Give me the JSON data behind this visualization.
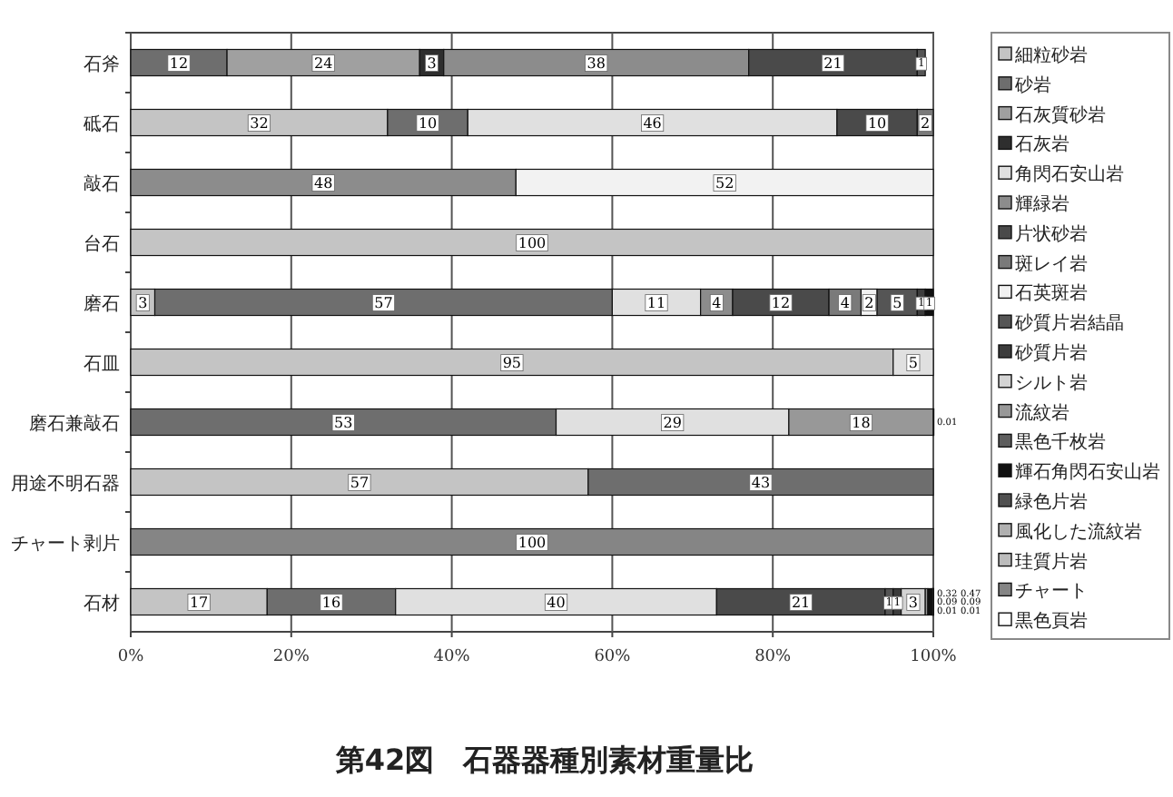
{
  "chart_data": {
    "type": "bar",
    "orientation": "horizontal",
    "stacked": true,
    "title": "第42図　石器器種別素材重量比",
    "categories": [
      "石斧",
      "砥石",
      "敲石",
      "台石",
      "磨石",
      "石皿",
      "磨石兼敲石",
      "用途不明石器",
      "チャート剥片",
      "石材"
    ],
    "xlim": [
      0,
      100
    ],
    "xticks": [
      {
        "value": 0,
        "label": "0%"
      },
      {
        "value": 20,
        "label": "20%"
      },
      {
        "value": 40,
        "label": "40%"
      },
      {
        "value": 60,
        "label": "60%"
      },
      {
        "value": 80,
        "label": "80%"
      },
      {
        "value": 100,
        "label": "100%"
      }
    ],
    "grid": "x",
    "legend": "right",
    "data_labels": true,
    "series": [
      {
        "name": "細粒砂岩",
        "color": "#c4c4c4",
        "values": [
          null,
          32,
          null,
          100,
          3,
          95,
          null,
          57,
          null,
          17
        ]
      },
      {
        "name": "砂岩",
        "color": "#6e6e6e",
        "values": [
          12,
          10,
          null,
          null,
          57,
          null,
          53,
          43,
          null,
          16
        ]
      },
      {
        "name": "石灰質砂岩",
        "color": "#a0a0a0",
        "values": [
          24,
          null,
          null,
          null,
          null,
          null,
          null,
          null,
          null,
          null
        ]
      },
      {
        "name": "石灰岩",
        "color": "#2e2e2e",
        "values": [
          3,
          null,
          null,
          null,
          null,
          null,
          null,
          null,
          null,
          null
        ]
      },
      {
        "name": "角閃石安山岩",
        "color": "#e0e0e0",
        "values": [
          null,
          46,
          null,
          null,
          11,
          5,
          29,
          null,
          null,
          40
        ]
      },
      {
        "name": "輝緑岩",
        "color": "#8c8c8c",
        "values": [
          38,
          null,
          48,
          null,
          4,
          null,
          null,
          null,
          null,
          null
        ]
      },
      {
        "name": "片状砂岩",
        "color": "#4a4a4a",
        "values": [
          21,
          10,
          null,
          null,
          12,
          null,
          null,
          null,
          null,
          21
        ]
      },
      {
        "name": "斑レイ岩",
        "color": "#7a7a7a",
        "values": [
          null,
          2,
          null,
          null,
          4,
          null,
          null,
          null,
          null,
          null
        ]
      },
      {
        "name": "石英斑岩",
        "color": "#f2f2f2",
        "values": [
          null,
          null,
          52,
          null,
          2,
          null,
          null,
          null,
          null,
          null
        ]
      },
      {
        "name": "砂質片岩結晶",
        "color": "#555555",
        "values": [
          1,
          null,
          null,
          null,
          5,
          null,
          null,
          null,
          null,
          1
        ]
      },
      {
        "name": "砂質片岩",
        "color": "#3c3c3c",
        "values": [
          null,
          null,
          null,
          null,
          1,
          null,
          null,
          null,
          null,
          1
        ]
      },
      {
        "name": "シルト岩",
        "color": "#d4d4d4",
        "values": [
          null,
          null,
          null,
          null,
          null,
          null,
          null,
          null,
          null,
          3
        ]
      },
      {
        "name": "流紋岩",
        "color": "#989898",
        "values": [
          null,
          null,
          null,
          null,
          null,
          null,
          18,
          null,
          null,
          0.32
        ]
      },
      {
        "name": "黒色千枚岩",
        "color": "#5e5e5e",
        "values": [
          null,
          null,
          null,
          null,
          null,
          null,
          0.01,
          null,
          null,
          null
        ]
      },
      {
        "name": "輝石角閃石安山岩",
        "color": "#111111",
        "values": [
          null,
          null,
          null,
          null,
          1,
          null,
          null,
          null,
          null,
          0.47
        ]
      },
      {
        "name": "緑色片岩",
        "color": "#505050",
        "values": [
          null,
          null,
          null,
          null,
          null,
          null,
          null,
          null,
          null,
          0.09
        ]
      },
      {
        "name": "風化した流紋岩",
        "color": "#b0b0b0",
        "values": [
          null,
          null,
          null,
          null,
          null,
          null,
          null,
          null,
          null,
          0.09
        ]
      },
      {
        "name": "珪質片岩",
        "color": "#bcbcbc",
        "values": [
          null,
          null,
          null,
          null,
          null,
          null,
          null,
          null,
          null,
          0.01
        ]
      },
      {
        "name": "チャート",
        "color": "#858585",
        "values": [
          null,
          null,
          null,
          null,
          null,
          null,
          null,
          null,
          100,
          null
        ]
      },
      {
        "name": "黒色頁岩",
        "color": "#ffffff",
        "values": [
          null,
          null,
          null,
          null,
          null,
          null,
          null,
          null,
          null,
          0.01
        ]
      }
    ]
  }
}
